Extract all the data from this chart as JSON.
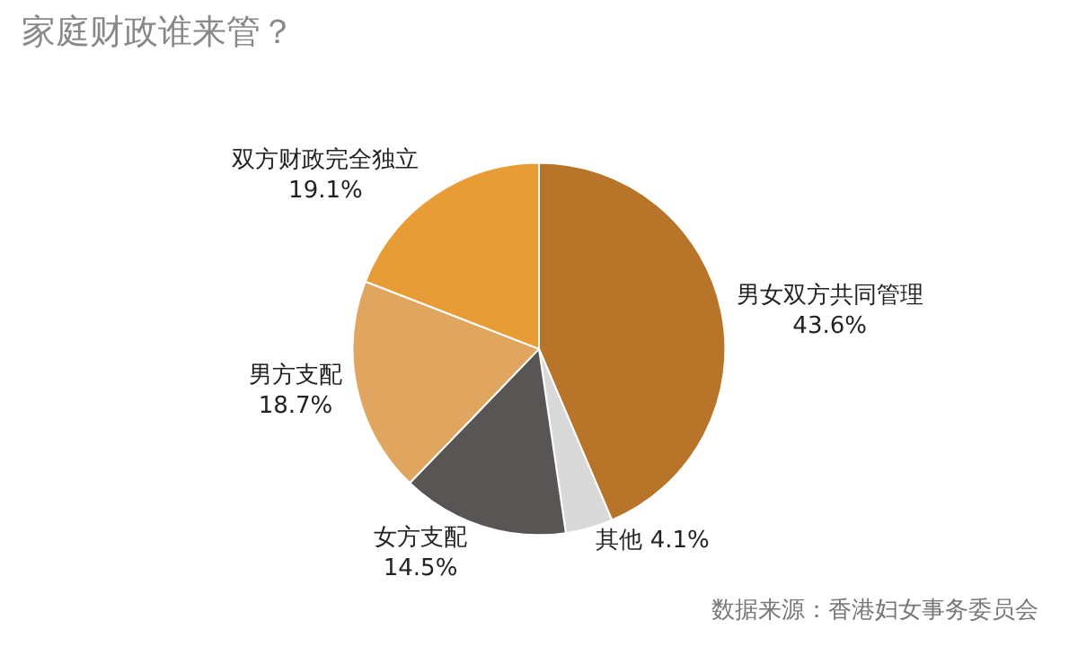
{
  "chart_data": {
    "type": "pie",
    "title": "家庭财政谁来管？",
    "categories": [
      "男女双方共同管理",
      "其他",
      "女方支配",
      "男方支配",
      "双方财政完全独立"
    ],
    "values": [
      43.6,
      4.1,
      14.5,
      18.7,
      19.1
    ],
    "value_labels": [
      "43.6%",
      "4.1%",
      "14.5%",
      "18.7%",
      "19.1%"
    ],
    "colors": [
      "#b87428",
      "#d9d9d9",
      "#5a5555",
      "#e0a660",
      "#e89c35"
    ],
    "annotations": [
      "数据来源：香港妇女事务委员会"
    ],
    "legend": false
  }
}
